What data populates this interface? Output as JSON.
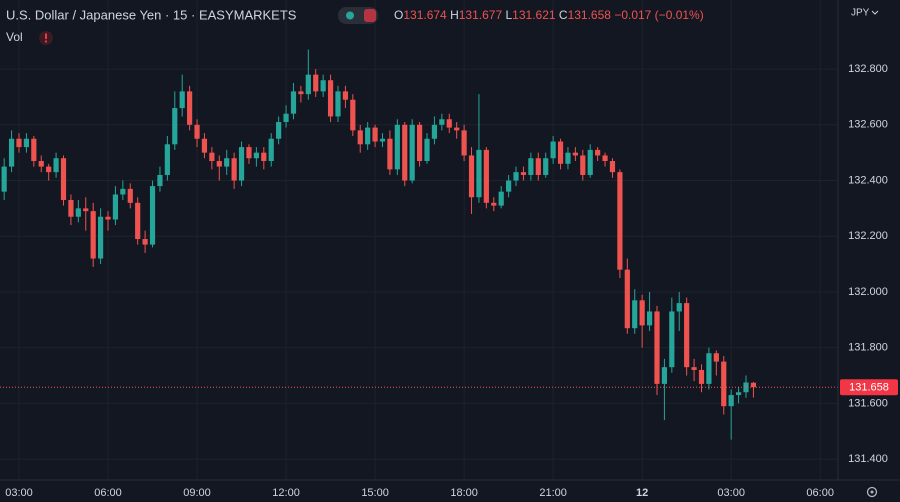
{
  "chart_data": {
    "type": "candlestick",
    "title": "U.S. Dollar / Japanese Yen · 15 · EASYMARKETS",
    "ohlc_labels": [
      "O",
      "H",
      "L",
      "C"
    ],
    "change": "−0.017 (−0.01%)",
    "volume_label": "Vol",
    "currency": "JPY",
    "up_color": "#26a69a",
    "down_color": "#ef5350",
    "grid": true,
    "x": [
      2.5,
      2.75,
      3,
      3.25,
      3.5,
      3.75,
      4,
      4.25,
      4.5,
      4.75,
      5,
      5.25,
      5.5,
      5.75,
      6,
      6.25,
      6.5,
      6.75,
      7,
      7.25,
      7.5,
      7.75,
      8,
      8.25,
      8.5,
      8.75,
      9,
      9.25,
      9.5,
      9.75,
      10,
      10.25,
      10.5,
      10.75,
      11,
      11.25,
      11.5,
      11.75,
      12,
      12.25,
      12.5,
      12.75,
      13,
      13.25,
      13.5,
      13.75,
      14,
      14.25,
      14.5,
      14.75,
      15,
      15.25,
      15.5,
      15.75,
      16,
      16.25,
      16.5,
      16.75,
      17,
      17.25,
      17.5,
      17.75,
      18,
      18.25,
      18.5,
      18.75,
      19,
      19.25,
      19.5,
      19.75,
      20,
      20.25,
      20.5,
      20.75,
      21,
      21.25,
      21.5,
      21.75,
      22,
      22.25,
      22.5,
      22.75,
      23,
      23.25,
      23.5,
      23.75,
      24,
      24.25,
      24.5,
      24.75,
      25,
      25.25,
      25.5,
      25.75,
      26,
      26.25,
      26.5,
      26.75,
      27,
      27.25,
      27.5,
      27.75
    ],
    "open": [
      132.36,
      132.45,
      132.55,
      132.52,
      132.55,
      132.47,
      132.45,
      132.43,
      132.48,
      132.33,
      132.27,
      132.3,
      132.29,
      132.12,
      132.27,
      132.26,
      132.35,
      132.37,
      132.32,
      132.19,
      132.17,
      132.38,
      132.42,
      132.53,
      132.66,
      132.72,
      132.6,
      132.55,
      132.5,
      132.47,
      132.45,
      132.48,
      132.4,
      132.52,
      132.48,
      132.5,
      132.47,
      132.55,
      132.61,
      132.64,
      132.72,
      132.71,
      132.78,
      132.72,
      132.76,
      132.63,
      132.72,
      132.69,
      132.58,
      132.53,
      132.59,
      132.54,
      132.55,
      132.44,
      132.6,
      132.4,
      132.6,
      132.47,
      132.55,
      132.6,
      132.62,
      132.59,
      132.58,
      132.49,
      132.34,
      132.51,
      132.32,
      132.31,
      132.36,
      132.4,
      132.43,
      132.42,
      132.48,
      132.42,
      132.48,
      132.54,
      132.46,
      132.5,
      132.49,
      132.42,
      132.51,
      132.49,
      132.47,
      132.43,
      132.08,
      131.87,
      131.97,
      131.88,
      131.93,
      131.67,
      131.73,
      131.93,
      131.96,
      131.73,
      131.72,
      131.67,
      131.78,
      131.75,
      131.59,
      131.63,
      131.64,
      131.674
    ],
    "high": [
      132.48,
      132.58,
      132.57,
      132.57,
      132.56,
      132.49,
      132.46,
      132.5,
      132.49,
      132.35,
      132.33,
      132.34,
      132.32,
      132.3,
      132.29,
      132.38,
      132.4,
      132.39,
      132.34,
      132.22,
      132.4,
      132.45,
      132.56,
      132.72,
      132.78,
      132.74,
      132.62,
      132.57,
      132.52,
      132.49,
      132.51,
      132.5,
      132.54,
      132.53,
      132.52,
      132.52,
      132.57,
      132.63,
      132.67,
      132.75,
      132.74,
      132.87,
      132.8,
      132.78,
      132.78,
      132.74,
      132.74,
      132.71,
      132.6,
      132.61,
      132.6,
      132.57,
      132.58,
      132.62,
      132.61,
      132.62,
      132.61,
      132.57,
      132.63,
      132.64,
      132.64,
      132.61,
      132.6,
      132.52,
      132.71,
      132.52,
      132.34,
      132.38,
      132.42,
      132.45,
      132.45,
      132.5,
      132.5,
      132.5,
      132.56,
      132.55,
      132.52,
      132.52,
      132.51,
      132.53,
      132.52,
      132.5,
      132.48,
      132.44,
      132.12,
      132.01,
      131.99,
      132.0,
      131.95,
      131.76,
      131.98,
      132.0,
      131.98,
      131.76,
      131.74,
      131.8,
      131.79,
      131.77,
      131.65,
      131.66,
      131.7,
      131.677
    ],
    "low": [
      132.33,
      132.43,
      132.5,
      132.5,
      132.45,
      132.43,
      132.4,
      132.41,
      132.31,
      132.24,
      132.25,
      132.22,
      132.09,
      132.1,
      132.22,
      132.24,
      132.33,
      132.3,
      132.17,
      132.14,
      132.16,
      132.36,
      132.4,
      132.51,
      132.63,
      132.58,
      132.52,
      132.48,
      132.44,
      132.4,
      132.42,
      132.37,
      132.38,
      132.46,
      132.45,
      132.44,
      132.45,
      132.53,
      132.59,
      132.62,
      132.68,
      132.69,
      132.7,
      132.7,
      132.61,
      132.61,
      132.66,
      132.56,
      132.5,
      132.51,
      132.52,
      132.52,
      132.42,
      132.42,
      132.38,
      132.39,
      132.45,
      132.46,
      132.53,
      132.58,
      132.57,
      132.55,
      132.47,
      132.28,
      132.32,
      132.3,
      132.29,
      132.3,
      132.34,
      132.38,
      132.4,
      132.4,
      132.4,
      132.41,
      132.46,
      132.44,
      132.44,
      132.47,
      132.4,
      132.41,
      132.47,
      132.45,
      132.41,
      132.05,
      131.85,
      131.85,
      131.8,
      131.86,
      131.63,
      131.54,
      131.71,
      131.86,
      131.7,
      131.68,
      131.64,
      131.65,
      131.7,
      131.56,
      131.47,
      131.6,
      131.62,
      131.621
    ],
    "close": [
      132.45,
      132.55,
      132.52,
      132.55,
      132.47,
      132.45,
      132.43,
      132.48,
      132.33,
      132.27,
      132.3,
      132.29,
      132.12,
      132.27,
      132.26,
      132.35,
      132.37,
      132.32,
      132.19,
      132.17,
      132.38,
      132.42,
      132.53,
      132.66,
      132.72,
      132.6,
      132.55,
      132.5,
      132.47,
      132.45,
      132.48,
      132.4,
      132.52,
      132.48,
      132.5,
      132.47,
      132.55,
      132.61,
      132.64,
      132.72,
      132.71,
      132.78,
      132.72,
      132.76,
      132.63,
      132.72,
      132.69,
      132.58,
      132.53,
      132.59,
      132.54,
      132.55,
      132.44,
      132.6,
      132.4,
      132.6,
      132.47,
      132.55,
      132.6,
      132.62,
      132.59,
      132.58,
      132.49,
      132.34,
      132.51,
      132.32,
      132.31,
      132.36,
      132.4,
      132.43,
      132.42,
      132.48,
      132.42,
      132.48,
      132.54,
      132.46,
      132.5,
      132.49,
      132.42,
      132.51,
      132.49,
      132.47,
      132.43,
      132.08,
      131.87,
      131.97,
      131.88,
      131.93,
      131.67,
      131.73,
      131.93,
      131.96,
      131.73,
      131.72,
      131.67,
      131.78,
      131.75,
      131.59,
      131.63,
      131.64,
      131.675,
      131.658
    ],
    "xlim": [
      2.36,
      30.6
    ],
    "xticks": [
      {
        "value": 3,
        "label": "03:00"
      },
      {
        "value": 6,
        "label": "06:00"
      },
      {
        "value": 9,
        "label": "09:00"
      },
      {
        "value": 12,
        "label": "12:00"
      },
      {
        "value": 15,
        "label": "15:00"
      },
      {
        "value": 18,
        "label": "18:00"
      },
      {
        "value": 21,
        "label": "21:00"
      },
      {
        "value": 24,
        "label": "12"
      },
      {
        "value": 27,
        "label": "03:00"
      },
      {
        "value": 30,
        "label": "06:00"
      }
    ],
    "ylim": [
      131.325,
      133.048
    ],
    "yticks": [
      {
        "value": 131.4,
        "label": "131.400"
      },
      {
        "value": 131.6,
        "label": "131.600"
      },
      {
        "value": 131.8,
        "label": "131.800"
      },
      {
        "value": 132,
        "label": "132.000"
      },
      {
        "value": 132.2,
        "label": "132.200"
      },
      {
        "value": 132.4,
        "label": "132.400"
      },
      {
        "value": 132.6,
        "label": "132.600"
      },
      {
        "value": 132.8,
        "label": "132.800"
      }
    ]
  }
}
